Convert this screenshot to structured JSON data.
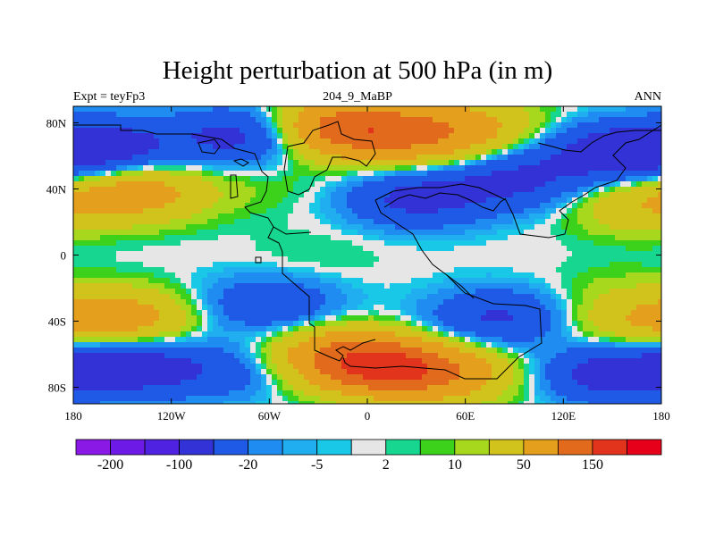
{
  "title": "Height perturbation at 500 hPa (in m)",
  "subtitle_left": "Expt = teyFp3",
  "subtitle_center": "204_9_MaBP",
  "subtitle_right": "ANN",
  "chart_data": {
    "type": "heatmap",
    "variable": "Height perturbation at 500 hPa",
    "units": "m",
    "x_axis": {
      "range": [
        -180,
        180
      ],
      "ticks": [
        {
          "value": -180,
          "label": "180"
        },
        {
          "value": -120,
          "label": "120W"
        },
        {
          "value": -60,
          "label": "60W"
        },
        {
          "value": 0,
          "label": "0"
        },
        {
          "value": 60,
          "label": "60E"
        },
        {
          "value": 120,
          "label": "120E"
        },
        {
          "value": 180,
          "label": "180"
        }
      ]
    },
    "y_axis": {
      "range": [
        -90,
        90
      ],
      "ticks": [
        {
          "value": 80,
          "label": "80N"
        },
        {
          "value": 40,
          "label": "40N"
        },
        {
          "value": 0,
          "label": "0"
        },
        {
          "value": -40,
          "label": "40S"
        },
        {
          "value": -80,
          "label": "80S"
        }
      ]
    },
    "colorbar": {
      "colors": [
        "#8a19e6",
        "#6e1ae6",
        "#4e22e0",
        "#3232d6",
        "#1e5ae6",
        "#1e8cf0",
        "#20aef0",
        "#18c8e6",
        "#e6e6e6",
        "#16d690",
        "#3cd21c",
        "#a8d81e",
        "#d2c21c",
        "#e4a01c",
        "#e26a1c",
        "#e2341c",
        "#e6001a"
      ],
      "labels": [
        {
          "boundary": 1,
          "text": "-200"
        },
        {
          "boundary": 3,
          "text": "-100"
        },
        {
          "boundary": 5,
          "text": "-20"
        },
        {
          "boundary": 7,
          "text": "-5"
        },
        {
          "boundary": 9,
          "text": "2"
        },
        {
          "boundary": 11,
          "text": "10"
        },
        {
          "boundary": 13,
          "text": "50"
        },
        {
          "boundary": 15,
          "text": "150"
        }
      ]
    },
    "field_features": [
      {
        "lon": -140,
        "lat": 38,
        "value": 70
      },
      {
        "lon": -160,
        "lat": 65,
        "value": -70
      },
      {
        "lon": -75,
        "lat": 72,
        "value": -70
      },
      {
        "lon": -10,
        "lat": 78,
        "value": 75
      },
      {
        "lon": -25,
        "lat": 75,
        "value": 55
      },
      {
        "lon": 30,
        "lat": 72,
        "value": 70
      },
      {
        "lon": 65,
        "lat": 78,
        "value": 45
      },
      {
        "lon": 30,
        "lat": 34,
        "value": -60
      },
      {
        "lon": 90,
        "lat": 45,
        "value": -55
      },
      {
        "lon": 150,
        "lat": 62,
        "value": -75
      },
      {
        "lon": 165,
        "lat": 30,
        "value": 40
      },
      {
        "lon": -60,
        "lat": 42,
        "value": 8
      },
      {
        "lon": -30,
        "lat": 0,
        "value": 6
      },
      {
        "lon": -150,
        "lat": -38,
        "value": 70
      },
      {
        "lon": -150,
        "lat": -68,
        "value": -75
      },
      {
        "lon": -90,
        "lat": -70,
        "value": -35
      },
      {
        "lon": 10,
        "lat": -68,
        "value": 130
      },
      {
        "lon": -20,
        "lat": -60,
        "value": 70
      },
      {
        "lon": 50,
        "lat": -72,
        "value": 65
      },
      {
        "lon": 80,
        "lat": -38,
        "value": -55
      },
      {
        "lon": 150,
        "lat": -72,
        "value": -70
      },
      {
        "lon": 160,
        "lat": -40,
        "value": 35
      },
      {
        "lon": -60,
        "lat": -30,
        "value": -45
      },
      {
        "lon": 150,
        "lat": -20,
        "value": 8
      }
    ]
  }
}
